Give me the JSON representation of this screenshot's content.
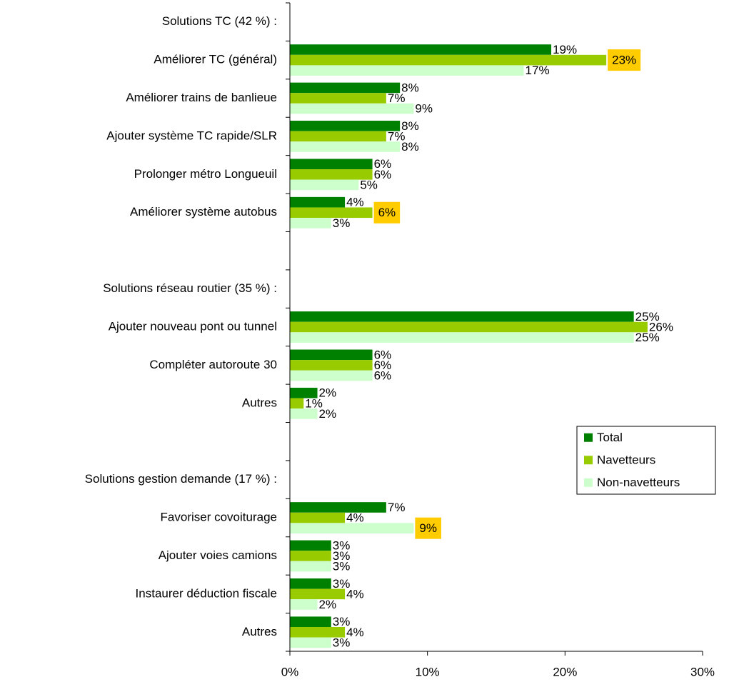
{
  "chart_data": {
    "type": "hbar",
    "categories": [
      "Solutions TC (42 %) :",
      "Améliorer TC (général)",
      "Améliorer trains de banlieue",
      "Ajouter système TC rapide/SLR",
      "Prolonger métro Longueuil",
      "Améliorer système autobus",
      null,
      "Solutions réseau routier (35 %) :",
      "Ajouter nouveau pont ou tunnel",
      "Compléter autoroute 30",
      "Autres",
      null,
      "Solutions gestion demande (17 %) :",
      "Favoriser covoiturage",
      "Ajouter voies camions",
      "Instaurer déduction fiscale",
      "Autres"
    ],
    "series": [
      {
        "name": "Total",
        "color": "#008000",
        "values": [
          null,
          19,
          8,
          8,
          6,
          4,
          null,
          null,
          25,
          6,
          2,
          null,
          null,
          7,
          3,
          3,
          3
        ],
        "value_labels": [
          null,
          "19%",
          "8%",
          "8%",
          "6%",
          "4%",
          null,
          null,
          "25%",
          "6%",
          "2%",
          null,
          null,
          "7%",
          "3%",
          "3%",
          "3%"
        ],
        "highlight": [
          false,
          false,
          false,
          false,
          false,
          false,
          false,
          false,
          false,
          false,
          false,
          false,
          false,
          false,
          false,
          false,
          false
        ]
      },
      {
        "name": "Navetteurs",
        "color": "#99cc00",
        "values": [
          null,
          23,
          7,
          7,
          6,
          6,
          null,
          null,
          26,
          6,
          1,
          null,
          null,
          4,
          3,
          4,
          4
        ],
        "value_labels": [
          null,
          "23%",
          "7%",
          "7%",
          "6%",
          "6%",
          null,
          null,
          "26%",
          "6%",
          "1%",
          null,
          null,
          "4%",
          "3%",
          "4%",
          "4%"
        ],
        "highlight": [
          false,
          true,
          false,
          false,
          false,
          true,
          false,
          false,
          false,
          false,
          false,
          false,
          false,
          false,
          false,
          false,
          false
        ]
      },
      {
        "name": "Non-navetteurs",
        "color": "#ccffcc",
        "values": [
          null,
          17,
          9,
          8,
          5,
          3,
          null,
          null,
          25,
          6,
          2,
          null,
          null,
          9,
          3,
          2,
          3
        ],
        "value_labels": [
          null,
          "17%",
          "9%",
          "8%",
          "5%",
          "3%",
          null,
          null,
          "25%",
          "6%",
          "2%",
          null,
          null,
          "9%",
          "3%",
          "2%",
          "3%"
        ],
        "highlight": [
          false,
          false,
          false,
          false,
          false,
          false,
          false,
          false,
          false,
          false,
          false,
          false,
          false,
          true,
          false,
          false,
          false
        ]
      }
    ],
    "highlight_color": "#ffcc00",
    "xlim": [
      0,
      30
    ],
    "xticks": [
      {
        "value": 0,
        "label": "0%"
      },
      {
        "value": 10,
        "label": "10%"
      },
      {
        "value": 20,
        "label": "20%"
      },
      {
        "value": 30,
        "label": "30%"
      }
    ],
    "legend": "right"
  }
}
